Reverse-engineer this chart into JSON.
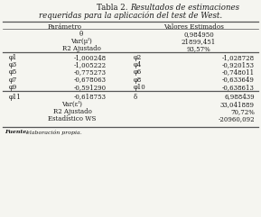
{
  "title_normal": "Tabla 2. ",
  "title_italic1": "Resultados de estimaciones",
  "title_italic2": "requeridas para la aplicación del test de West.",
  "col_header_left": "Parámetro",
  "col_header_right": "Valores Estimados",
  "section1": [
    [
      "θ",
      "0,984950"
    ],
    [
      "Var(μᴵ)",
      "21899,451"
    ],
    [
      "R2 Ajustado",
      "93,57%"
    ]
  ],
  "section2": [
    [
      "φ1",
      "-1,000248",
      "φ2",
      "-1,028728"
    ],
    [
      "φ3",
      "-1,005222",
      "φ4",
      "-0,920153"
    ],
    [
      "φ5",
      "-0,775273",
      "φ6",
      "-0,748011"
    ],
    [
      "φ7",
      "-0,678063",
      "φ8",
      "-0,633649"
    ],
    [
      "φ9",
      "-0,591290",
      "φ10",
      "-0,638613"
    ]
  ],
  "section3_row0": [
    "φ11",
    "-0,618753",
    "δ",
    "6,988439"
  ],
  "section3_rest": [
    [
      "Var(εᴵ)",
      "33,041889"
    ],
    [
      "R2 Ajustado",
      "70,72%"
    ],
    [
      "Estadístico WS",
      "-20960,092"
    ]
  ],
  "footnote_bold": "Fuente:",
  "footnote_rest": " elaboración propia.",
  "bg_color": "#f5f5f0",
  "text_color": "#1a1a1a",
  "line_color": "#555555"
}
